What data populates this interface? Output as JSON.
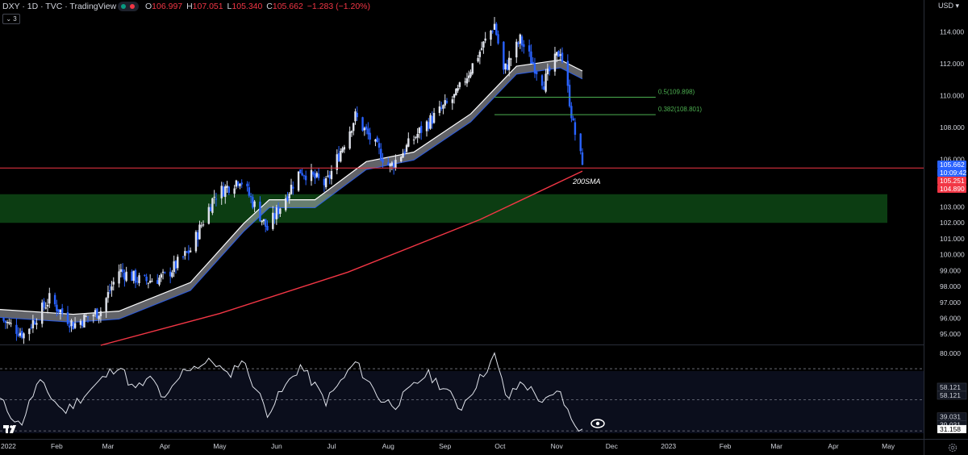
{
  "header": {
    "symbol_line": "DXY · 1D · TVC · TradingView",
    "status_colors": [
      "#089981",
      "#f23645"
    ],
    "ohlc": [
      {
        "k": "O",
        "v": "106.997"
      },
      {
        "k": "H",
        "v": "107.051"
      },
      {
        "k": "L",
        "v": "105.340"
      },
      {
        "k": "C",
        "v": "105.662"
      },
      {
        "k": "",
        "v": "−1.283 (−1.20%)"
      }
    ],
    "collapse_label": "⌄ 3",
    "currency": "USD ▾"
  },
  "colors": {
    "up": "#e0e3eb",
    "down": "#2962ff",
    "sma200": "#f23645",
    "zone": "#0c3d12",
    "fib": "#4caf50",
    "rsi": "#e0e3eb",
    "ribbon": "#b2b5be"
  },
  "chart_data": {
    "type": "candlestick",
    "title": "DXY · 1D · TVC",
    "price_axis": {
      "ticks": [
        "114.000",
        "112.000",
        "110.000",
        "108.000",
        "106.000",
        "103.000",
        "102.000",
        "101.000",
        "100.000",
        "99.000",
        "98.000",
        "97.000",
        "96.000",
        "95.000"
      ],
      "range": [
        94.3,
        115.0
      ]
    },
    "time_axis": {
      "labels": [
        "2022",
        "Feb",
        "Mar",
        "Apr",
        "May",
        "Jun",
        "Jul",
        "Aug",
        "Sep",
        "Oct",
        "Nov",
        "Dec",
        "2023",
        "Feb",
        "Mar",
        "Apr",
        "May"
      ]
    },
    "price_path": [
      [
        "2022-01-01",
        96.0
      ],
      [
        "2022-01-14",
        95.0
      ],
      [
        "2022-01-28",
        97.2
      ],
      [
        "2022-02-10",
        95.6
      ],
      [
        "2022-02-25",
        96.5
      ],
      [
        "2022-03-07",
        99.0
      ],
      [
        "2022-03-20",
        98.3
      ],
      [
        "2022-04-01",
        98.6
      ],
      [
        "2022-04-15",
        100.3
      ],
      [
        "2022-04-28",
        103.7
      ],
      [
        "2022-05-12",
        104.8
      ],
      [
        "2022-05-27",
        101.6
      ],
      [
        "2022-06-14",
        105.3
      ],
      [
        "2022-06-28",
        104.4
      ],
      [
        "2022-07-14",
        108.7
      ],
      [
        "2022-07-28",
        106.3
      ],
      [
        "2022-08-02",
        105.5
      ],
      [
        "2022-08-20",
        108.0
      ],
      [
        "2022-09-07",
        110.0
      ],
      [
        "2022-09-28",
        114.5
      ],
      [
        "2022-10-03",
        111.5
      ],
      [
        "2022-10-12",
        113.5
      ],
      [
        "2022-10-25",
        110.8
      ],
      [
        "2022-11-03",
        112.9
      ],
      [
        "2022-11-08",
        109.7
      ],
      [
        "2022-11-10",
        108.1
      ],
      [
        "2022-11-15",
        105.66
      ]
    ],
    "candle_seed": 7,
    "sma200": {
      "label": "200SMA",
      "points": [
        [
          "2022-02-25",
          94.3
        ],
        [
          "2022-05-01",
          96.3
        ],
        [
          "2022-07-10",
          98.9
        ],
        [
          "2022-09-20",
          102.2
        ],
        [
          "2022-11-15",
          105.25
        ]
      ]
    },
    "sma_ribbon": {
      "points": [
        [
          "2022-01-01",
          96.3
        ],
        [
          "2022-02-10",
          96.0
        ],
        [
          "2022-03-07",
          96.2
        ],
        [
          "2022-04-15",
          98.0
        ],
        [
          "2022-05-14",
          101.7
        ],
        [
          "2022-05-28",
          103.2
        ],
        [
          "2022-06-22",
          103.2
        ],
        [
          "2022-07-20",
          105.6
        ],
        [
          "2022-08-15",
          106.2
        ],
        [
          "2022-09-15",
          108.6
        ],
        [
          "2022-10-10",
          111.6
        ],
        [
          "2022-11-03",
          112.0
        ],
        [
          "2022-11-15",
          111.3
        ]
      ],
      "width": 0.25
    },
    "support_zone": {
      "from": 102.0,
      "to": 103.8
    },
    "fib_levels": [
      {
        "label": "0.5(109.898)",
        "value": 109.898
      },
      {
        "label": "0.382(108.801)",
        "value": 108.801
      }
    ],
    "fib_start": "2022-09-28",
    "fib_end": "2022-12-25",
    "horizontal_line": 105.45,
    "price_tags": [
      {
        "text": "105.662",
        "value": 105.662,
        "color": "#2962ff"
      },
      {
        "text": "10:09:42",
        "value": 105.662,
        "color": "#2962ff",
        "countdown": true
      },
      {
        "text": "105.251",
        "value": 105.251,
        "color": "#f23645"
      },
      {
        "text": "104.890",
        "value": 104.89,
        "color": "#f23645"
      }
    ],
    "rsi": {
      "ticks": [
        "80.000"
      ],
      "range": [
        28,
        83
      ],
      "bands": [
        {
          "text": "58.121",
          "value": 58.121
        },
        {
          "text": "39.031",
          "value": 39.031
        }
      ],
      "dashed_levels": [
        70,
        50,
        30
      ],
      "last": {
        "text": "31.158",
        "value": 31.158
      },
      "path": [
        [
          "2022-01-01",
          50
        ],
        [
          "2022-01-12",
          33
        ],
        [
          "2022-01-22",
          62
        ],
        [
          "2022-02-05",
          42
        ],
        [
          "2022-02-20",
          57
        ],
        [
          "2022-03-07",
          73
        ],
        [
          "2022-03-15",
          56
        ],
        [
          "2022-03-25",
          64
        ],
        [
          "2022-04-01",
          49
        ],
        [
          "2022-04-12",
          70
        ],
        [
          "2022-04-28",
          75
        ],
        [
          "2022-05-05",
          65
        ],
        [
          "2022-05-13",
          76
        ],
        [
          "2022-05-27",
          42
        ],
        [
          "2022-06-14",
          72
        ],
        [
          "2022-06-28",
          49
        ],
        [
          "2022-07-14",
          74
        ],
        [
          "2022-07-28",
          50
        ],
        [
          "2022-08-05",
          47
        ],
        [
          "2022-08-22",
          67
        ],
        [
          "2022-09-02",
          56
        ],
        [
          "2022-09-09",
          44
        ],
        [
          "2022-09-18",
          60
        ],
        [
          "2022-09-28",
          78
        ],
        [
          "2022-10-05",
          50
        ],
        [
          "2022-10-13",
          62
        ],
        [
          "2022-10-25",
          48
        ],
        [
          "2022-11-03",
          55
        ],
        [
          "2022-11-09",
          36
        ],
        [
          "2022-11-15",
          31.2
        ]
      ],
      "eye_icon": "eye-icon"
    }
  }
}
